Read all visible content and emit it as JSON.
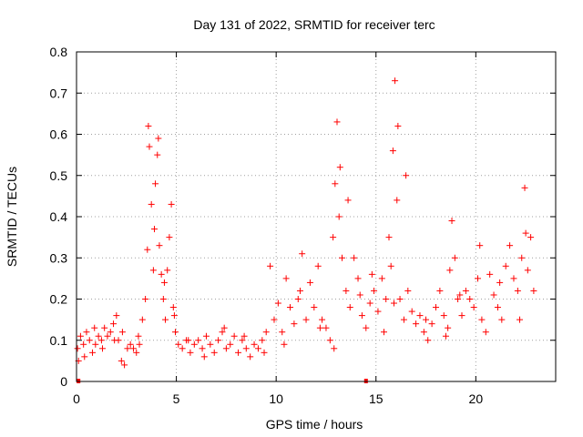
{
  "chart_data": {
    "type": "scatter",
    "title": "Day 131 of 2022, SRMTID for receiver terc",
    "xlabel": "GPS time / hours",
    "ylabel": "SRMTID / TECUs",
    "xlim": [
      0,
      24
    ],
    "ylim": [
      0,
      0.8
    ],
    "xticks": [
      0,
      5,
      10,
      15,
      20
    ],
    "yticks": [
      0,
      0.1,
      0.2,
      0.3,
      0.4,
      0.5,
      0.6,
      0.7,
      0.8
    ],
    "xtick_labels": [
      "0",
      "5",
      "10",
      "15",
      "20"
    ],
    "ytick_labels": [
      "0",
      "0.1",
      "0.2",
      "0.3",
      "0.4",
      "0.5",
      "0.6",
      "0.7",
      "0.8"
    ],
    "grid": true,
    "marker": "+",
    "color": "#ff0000",
    "series": [
      {
        "name": "SRMTID",
        "x": [
          0.05,
          0.2,
          0.35,
          0.5,
          0.65,
          0.8,
          0.95,
          1.1,
          1.25,
          1.4,
          1.55,
          1.7,
          1.85,
          2.0,
          2.1,
          2.25,
          2.4,
          2.55,
          2.7,
          2.85,
          3.0,
          3.15,
          3.3,
          3.45,
          3.55,
          3.65,
          3.75,
          3.85,
          3.95,
          4.05,
          4.15,
          4.25,
          4.35,
          4.45,
          4.55,
          4.65,
          4.75,
          4.85,
          4.95,
          5.1,
          5.3,
          5.5,
          5.7,
          5.9,
          6.1,
          6.3,
          6.5,
          6.7,
          6.9,
          7.1,
          7.3,
          7.5,
          7.7,
          7.9,
          8.1,
          8.3,
          8.5,
          8.7,
          8.9,
          9.1,
          9.3,
          9.5,
          9.7,
          9.9,
          10.1,
          10.3,
          10.5,
          10.7,
          10.9,
          11.1,
          11.3,
          11.5,
          11.7,
          11.9,
          12.1,
          12.3,
          12.5,
          12.7,
          12.85,
          12.95,
          13.05,
          13.15,
          13.3,
          13.5,
          13.7,
          13.9,
          14.1,
          14.3,
          14.5,
          14.7,
          14.9,
          15.1,
          15.3,
          15.5,
          15.65,
          15.75,
          15.85,
          15.95,
          16.05,
          16.2,
          16.4,
          16.6,
          16.8,
          17.0,
          17.2,
          17.4,
          17.6,
          17.8,
          18.0,
          18.2,
          18.4,
          18.6,
          18.7,
          18.8,
          18.95,
          19.1,
          19.3,
          19.5,
          19.7,
          19.9,
          20.1,
          20.3,
          20.5,
          20.7,
          20.9,
          21.1,
          21.3,
          21.5,
          21.7,
          21.9,
          22.1,
          22.3,
          22.45,
          22.6,
          22.75,
          22.9,
          0.1,
          0.4,
          0.9,
          1.3,
          1.9,
          2.3,
          3.1,
          3.6,
          3.9,
          4.1,
          4.4,
          4.9,
          5.6,
          6.4,
          7.4,
          8.4,
          9.4,
          10.4,
          11.2,
          12.2,
          12.9,
          13.2,
          13.6,
          14.2,
          14.8,
          15.4,
          15.9,
          16.1,
          16.5,
          17.5,
          18.5,
          19.2,
          20.2,
          21.2,
          22.2,
          22.5
        ],
        "y": [
          0.08,
          0.11,
          0.09,
          0.12,
          0.1,
          0.07,
          0.09,
          0.11,
          0.1,
          0.13,
          0.11,
          0.12,
          0.14,
          0.16,
          0.1,
          0.05,
          0.04,
          0.08,
          0.09,
          0.08,
          0.07,
          0.09,
          0.15,
          0.2,
          0.32,
          0.57,
          0.43,
          0.27,
          0.48,
          0.55,
          0.33,
          0.26,
          0.2,
          0.15,
          0.27,
          0.35,
          0.43,
          0.18,
          0.12,
          0.09,
          0.08,
          0.1,
          0.07,
          0.09,
          0.1,
          0.08,
          0.11,
          0.09,
          0.07,
          0.1,
          0.12,
          0.08,
          0.09,
          0.11,
          0.07,
          0.1,
          0.08,
          0.06,
          0.09,
          0.08,
          0.1,
          0.12,
          0.28,
          0.15,
          0.19,
          0.12,
          0.25,
          0.18,
          0.14,
          0.2,
          0.31,
          0.15,
          0.24,
          0.18,
          0.28,
          0.15,
          0.13,
          0.1,
          0.35,
          0.48,
          0.63,
          0.4,
          0.3,
          0.22,
          0.18,
          0.3,
          0.25,
          0.16,
          0.13,
          0.19,
          0.22,
          0.17,
          0.25,
          0.2,
          0.35,
          0.28,
          0.56,
          0.73,
          0.44,
          0.2,
          0.15,
          0.22,
          0.17,
          0.14,
          0.16,
          0.12,
          0.1,
          0.14,
          0.18,
          0.22,
          0.16,
          0.13,
          0.27,
          0.39,
          0.3,
          0.2,
          0.16,
          0.22,
          0.2,
          0.18,
          0.25,
          0.15,
          0.12,
          0.26,
          0.21,
          0.18,
          0.15,
          0.28,
          0.33,
          0.25,
          0.22,
          0.3,
          0.47,
          0.27,
          0.35,
          0.22,
          0.05,
          0.06,
          0.13,
          0.08,
          0.1,
          0.12,
          0.11,
          0.62,
          0.37,
          0.59,
          0.24,
          0.16,
          0.1,
          0.06,
          0.13,
          0.11,
          0.07,
          0.09,
          0.22,
          0.13,
          0.08,
          0.52,
          0.44,
          0.21,
          0.26,
          0.12,
          0.19,
          0.62,
          0.5,
          0.15,
          0.11,
          0.21,
          0.33,
          0.24,
          0.15,
          0.36
        ],
        "zero_markers_x": [
          0.1,
          14.5
        ]
      }
    ]
  }
}
